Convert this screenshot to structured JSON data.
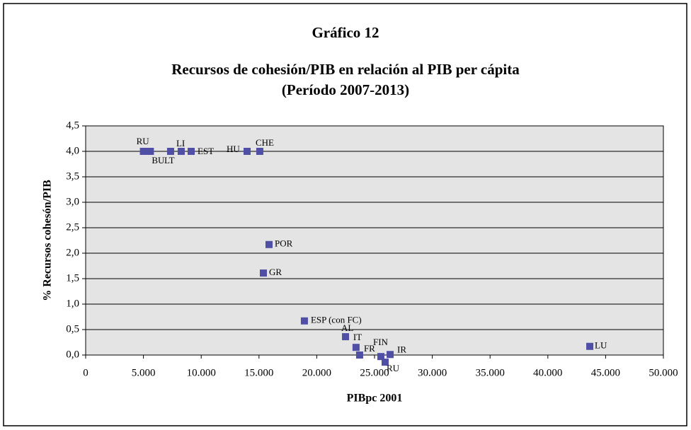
{
  "chart_data": {
    "type": "scatter",
    "title": "Gráfico 12",
    "subtitle": [
      "Recursos de cohesión/PIB en relación al PIB per cápita",
      "(Período 2007-2013)"
    ],
    "x_label": "PIBpc 2001",
    "y_label": "% Recursos cohesón/PIB",
    "series": [
      {
        "color": "#4f4fa6",
        "x": [
          5000,
          5600,
          7350,
          8270,
          9130,
          13970,
          15070,
          15870,
          15380,
          18930,
          22490,
          23400,
          23710,
          25550,
          25920,
          26350,
          43630
        ],
        "values": [
          4.0,
          4.0,
          4.0,
          4.0,
          4.0,
          4.0,
          4.0,
          2.17,
          1.61,
          0.67,
          0.36,
          0.15,
          0.0,
          -0.03,
          -0.14,
          0.01,
          0.17
        ],
        "labels": [
          "RU",
          "BU",
          "LT",
          "LI",
          "EST",
          "HU",
          "CHE",
          "POR",
          "GR",
          "ESP (con FC)",
          "AL",
          "IT",
          "FR",
          "FIN",
          "RU",
          "IR",
          "LU"
        ]
      }
    ],
    "xlim": [
      0,
      50000
    ],
    "xticks": [
      0,
      {
        "value": 5000,
        "label": "5.000"
      },
      {
        "value": 10000,
        "label": "10.000"
      },
      {
        "value": 15000,
        "label": "15.000"
      },
      {
        "value": 20000,
        "label": "20.000"
      },
      {
        "value": 25000,
        "label": "25.000"
      },
      {
        "value": 30000,
        "label": "30.000"
      },
      {
        "value": 35000,
        "label": "35.000"
      },
      {
        "value": 40000,
        "label": "40.000"
      },
      {
        "value": 45000,
        "label": "45.000"
      },
      {
        "value": 50000,
        "label": "50.000"
      }
    ],
    "ylim": [
      0,
      4.5
    ],
    "yticks": [
      {
        "value": 0,
        "label": "0,0"
      },
      {
        "value": 0.5,
        "label": "0,5"
      },
      {
        "value": 1,
        "label": "1,0"
      },
      {
        "value": 1.5,
        "label": "1,5"
      },
      {
        "value": 2,
        "label": "2,0"
      },
      {
        "value": 2.5,
        "label": "2,5"
      },
      {
        "value": 3,
        "label": "3,0"
      },
      {
        "value": 3.5,
        "label": "3,5"
      },
      {
        "value": 4,
        "label": "4,0"
      },
      {
        "value": 4.5,
        "label": "4,5"
      }
    ],
    "grid": true
  }
}
